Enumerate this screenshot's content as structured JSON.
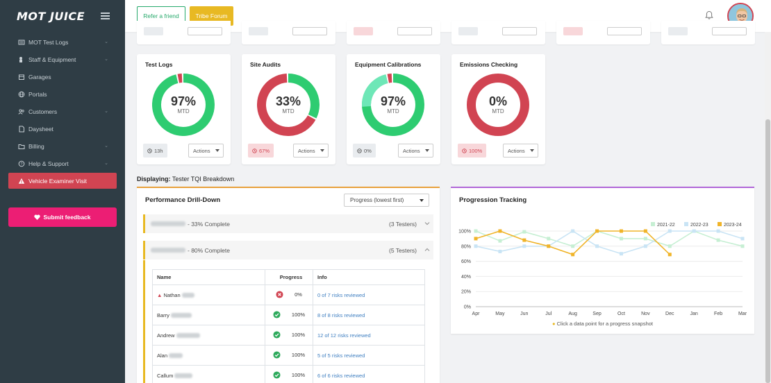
{
  "app": {
    "logo": "MOT JUICE"
  },
  "sidebar": {
    "items": [
      {
        "label": "MOT Test Logs",
        "icon": "list-icon",
        "has_chevron": true
      },
      {
        "label": "Staff & Equipment",
        "icon": "wrench-icon",
        "has_chevron": true
      },
      {
        "label": "Garages",
        "icon": "garage-icon",
        "has_chevron": false
      },
      {
        "label": "Portals",
        "icon": "globe-icon",
        "has_chevron": false
      },
      {
        "label": "Customers",
        "icon": "users-icon",
        "has_chevron": true
      },
      {
        "label": "Daysheet",
        "icon": "document-icon",
        "has_chevron": false
      },
      {
        "label": "Billing",
        "icon": "folder-icon",
        "has_chevron": true
      },
      {
        "label": "Help & Support",
        "icon": "help-icon",
        "has_chevron": true
      },
      {
        "label": "Vehicle Examiner Visit",
        "icon": "alert-icon",
        "has_chevron": false,
        "active": true
      }
    ],
    "feedback_label": "Submit feedback"
  },
  "topbar": {
    "refer_label": "Refer a friend",
    "tribe_label": "Tribe Forum"
  },
  "cards": [
    {
      "title": "Test Logs",
      "percent": "97%",
      "value": 97,
      "sub": "MTD",
      "badge": "13h",
      "badge_icon": "clock-icon",
      "badge_style": "neutral",
      "actions_label": "Actions",
      "fill_color": "#2ecc71",
      "rest_color": "#d14452"
    },
    {
      "title": "Site Audits",
      "percent": "33%",
      "value": 33,
      "sub": "MTD",
      "badge": "67%",
      "badge_icon": "clock-icon",
      "badge_style": "red",
      "actions_label": "Actions",
      "fill_color": "#2ecc71",
      "rest_color": "#d14452"
    },
    {
      "title": "Equipment Calibrations",
      "percent": "97%",
      "value": 97,
      "sub": "MTD",
      "badge": "0%",
      "badge_icon": "minus-circle-icon",
      "badge_style": "neutral",
      "actions_label": "Actions",
      "fill_color": "#2ecc71",
      "rest_color": "#d14452",
      "highlight_color": "#6ee7b7",
      "highlight_value": 23
    },
    {
      "title": "Emissions Checking",
      "percent": "0%",
      "value": 0,
      "sub": "MTD",
      "badge": "100%",
      "badge_icon": "clock-icon",
      "badge_style": "red",
      "actions_label": "Actions",
      "fill_color": "#2ecc71",
      "rest_color": "#d14452"
    }
  ],
  "displaying": {
    "prefix": "Displaying:",
    "value": "Tester TQI Breakdown"
  },
  "drill": {
    "title": "Performance Drill-Down",
    "sort_selected": "Progress (lowest first)",
    "groups": [
      {
        "status": "- 33% Complete",
        "count": "(3 Testers)",
        "expanded": false
      },
      {
        "status": "- 80% Complete",
        "count": "(5 Testers)",
        "expanded": true
      }
    ],
    "table": {
      "headers": [
        "Name",
        "Progress",
        "Info"
      ],
      "rows": [
        {
          "name": "Nathan",
          "warning": true,
          "status": "fail",
          "progress": "0%",
          "info": "0 of 7 risks reviewed"
        },
        {
          "name": "Barry",
          "warning": false,
          "status": "pass",
          "progress": "100%",
          "info": "8 of 8 risks reviewed"
        },
        {
          "name": "Andrew",
          "warning": false,
          "status": "pass",
          "progress": "100%",
          "info": "12 of 12 risks reviewed"
        },
        {
          "name": "Alan",
          "warning": false,
          "status": "pass",
          "progress": "100%",
          "info": "5 of 5 risks reviewed"
        },
        {
          "name": "Callum",
          "warning": false,
          "status": "pass",
          "progress": "100%",
          "info": "6 of 6 risks reviewed"
        }
      ]
    }
  },
  "progression": {
    "title": "Progression Tracking",
    "hint": "Click a data point for a progress snapshot"
  },
  "chart_data": {
    "type": "line",
    "categories": [
      "Apr",
      "May",
      "Jun",
      "Jul",
      "Aug",
      "Sep",
      "Oct",
      "Nov",
      "Dec",
      "Jan",
      "Feb",
      "Mar"
    ],
    "y_ticks": [
      "0%",
      "20%",
      "40%",
      "60%",
      "80%",
      "100%"
    ],
    "ylim": [
      0,
      100
    ],
    "grid": true,
    "legend_position": "top-right",
    "series": [
      {
        "name": "2021-22",
        "color": "#c6efd3",
        "values": [
          100,
          87,
          99,
          90,
          80,
          100,
          90,
          90,
          80,
          100,
          88,
          80
        ]
      },
      {
        "name": "2022-23",
        "color": "#c9e4f5",
        "values": [
          80,
          73,
          80,
          80,
          100,
          80,
          70,
          80,
          100,
          100,
          100,
          90
        ]
      },
      {
        "name": "2023-24",
        "color": "#f0b429",
        "values": [
          90,
          100,
          88,
          80,
          69,
          100,
          100,
          100,
          69,
          null,
          null,
          null
        ]
      }
    ]
  }
}
